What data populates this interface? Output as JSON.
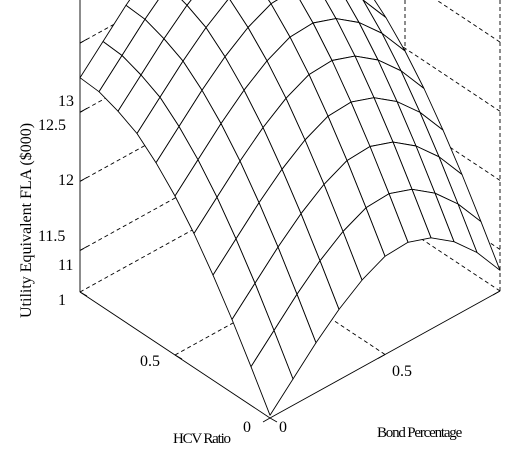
{
  "chart_data": {
    "type": "surface",
    "title": "",
    "xlabel": "Bond Percentage",
    "ylabel": "HCV Ratio",
    "zlabel": "Utility Equivalent FLA ($000)",
    "x": [
      0,
      0.1,
      0.2,
      0.3,
      0.4,
      0.5,
      0.6,
      0.7,
      0.8,
      0.9,
      1.0
    ],
    "y": [
      0,
      0.1,
      0.2,
      0.3,
      0.4,
      0.5,
      0.6,
      0.7,
      0.8,
      0.9,
      1.0
    ],
    "z_ticks": [
      "11",
      "11.5",
      "12",
      "12.5",
      "13"
    ],
    "x_ticks": [
      "0",
      "0.5"
    ],
    "y_ticks": [
      "0",
      "0.5",
      "1"
    ],
    "zlim": [
      10.7,
      13
    ],
    "grid": true,
    "values": [
      [
        10.72,
        10.89,
        11.06,
        11.21,
        11.33,
        11.41,
        11.42,
        11.36,
        11.24,
        11.07,
        10.85
      ],
      [
        10.98,
        11.15,
        11.32,
        11.47,
        11.59,
        11.67,
        11.68,
        11.62,
        11.5,
        11.33,
        11.11
      ],
      [
        11.23,
        11.4,
        11.57,
        11.72,
        11.84,
        11.92,
        11.93,
        11.87,
        11.75,
        11.58,
        11.36
      ],
      [
        11.46,
        11.63,
        11.8,
        11.95,
        12.07,
        12.15,
        12.16,
        12.1,
        11.98,
        11.81,
        11.59
      ],
      [
        11.67,
        11.84,
        12.01,
        12.16,
        12.28,
        12.36,
        12.37,
        12.31,
        12.19,
        12.02,
        11.8
      ],
      [
        11.85,
        12.02,
        12.19,
        12.34,
        12.46,
        12.54,
        12.55,
        12.49,
        12.37,
        12.2,
        11.98
      ],
      [
        12.0,
        12.17,
        12.34,
        12.49,
        12.61,
        12.69,
        12.7,
        12.64,
        12.52,
        12.35,
        12.13
      ],
      [
        12.12,
        12.29,
        12.46,
        12.61,
        12.73,
        12.81,
        12.82,
        12.76,
        12.64,
        12.47,
        12.25
      ],
      [
        12.19,
        12.36,
        12.53,
        12.68,
        12.8,
        12.88,
        12.89,
        12.83,
        12.71,
        12.54,
        12.32
      ],
      [
        12.24,
        12.41,
        12.58,
        12.73,
        12.85,
        12.93,
        12.94,
        12.88,
        12.76,
        12.59,
        12.37
      ],
      [
        12.25,
        12.42,
        12.59,
        12.74,
        12.86,
        12.94,
        12.95,
        12.89,
        12.77,
        12.6,
        12.38
      ]
    ]
  }
}
